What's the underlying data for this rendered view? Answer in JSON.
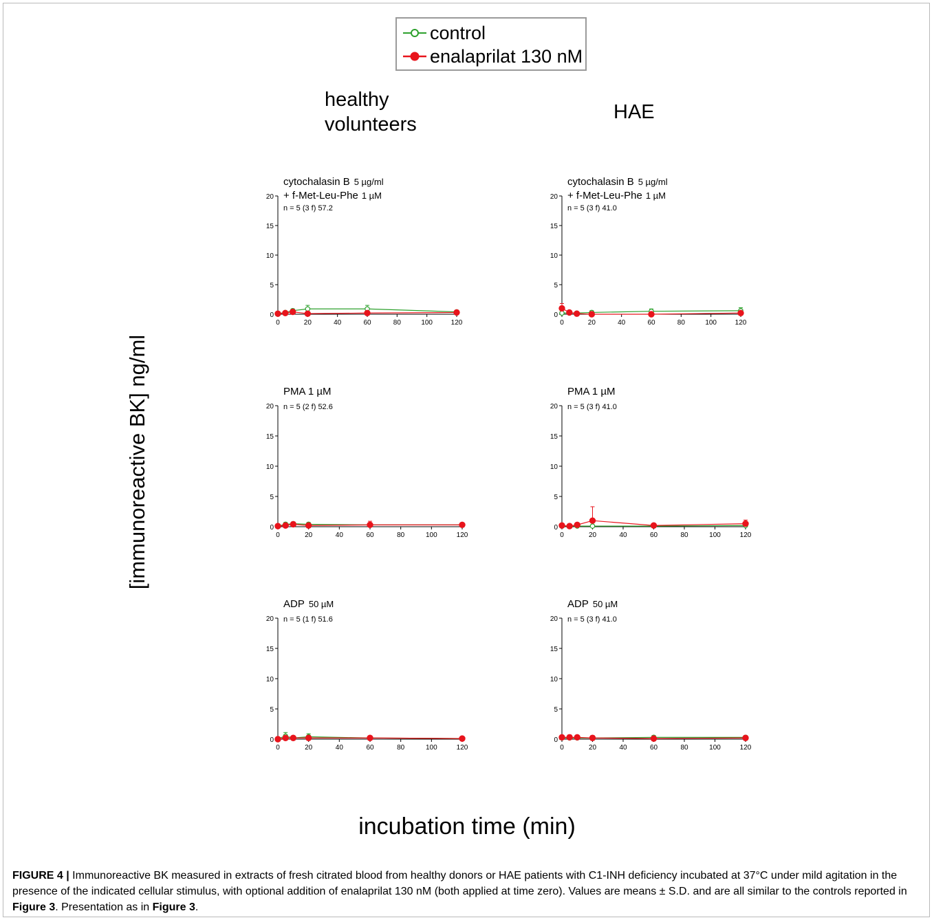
{
  "legend": {
    "control": "control",
    "enalaprilat": "enalaprilat 130 nM"
  },
  "column_titles": {
    "healthy_line1": "healthy",
    "healthy_line2": "volunteers",
    "hae": "HAE"
  },
  "y_axis_label": "[immunoreactive BK] ng/ml",
  "x_axis_label": "incubation time (min)",
  "caption": {
    "fig_label": "FIGURE 4 |",
    "text_1": " Immunoreactive BK measured in extracts of fresh citrated blood from healthy donors or HAE patients with C1-INH deficiency incubated at 37°C under mild agitation in the presence of the indicated cellular stimulus, with optional addition of enalaprilat 130 nM (both applied at time zero). Values are means ± S.D. and are all similar to the controls reported in ",
    "ref_1": "Figure 3",
    "text_2": ". Presentation as in ",
    "ref_2": "Figure 3",
    "text_3": "."
  },
  "colors": {
    "control": "#2ca02c",
    "enalaprilat": "#e8141c",
    "axis": "#000000"
  },
  "chart_data": [
    {
      "type": "line",
      "panel": "healthy-cytochalasin",
      "title_main": "cytochalasin B",
      "title_conc": "5 µg/ml",
      "title2_main": "+ f-Met-Leu-Phe",
      "title2_conc": "1 µM",
      "n_note": "n = 5 (3 f) 57.2",
      "x": [
        0,
        5,
        10,
        20,
        60,
        120
      ],
      "xticks": [
        0,
        20,
        40,
        60,
        80,
        100,
        120
      ],
      "yticks": [
        0,
        5,
        10,
        15,
        20
      ],
      "ylim": [
        0,
        20
      ],
      "xlim": [
        0,
        120
      ],
      "series": [
        {
          "name": "control",
          "values": [
            0.1,
            0.3,
            0.6,
            0.9,
            0.9,
            0.4
          ],
          "sd": [
            0.1,
            0.2,
            0.3,
            0.6,
            0.6,
            0.3
          ]
        },
        {
          "name": "enalaprilat 130 nM",
          "values": [
            0.1,
            0.2,
            0.4,
            0.1,
            0.2,
            0.3
          ],
          "sd": [
            0.1,
            0.2,
            0.3,
            0.2,
            0.2,
            0.2
          ]
        }
      ]
    },
    {
      "type": "line",
      "panel": "hae-cytochalasin",
      "title_main": "cytochalasin B",
      "title_conc": "5 µg/ml",
      "title2_main": "+ f-Met-Leu-Phe",
      "title2_conc": "1 µM",
      "n_note": "n = 5 (3 f) 41.0",
      "x": [
        0,
        5,
        10,
        20,
        60,
        120
      ],
      "xticks": [
        0,
        20,
        40,
        60,
        80,
        100,
        120
      ],
      "yticks": [
        0,
        5,
        10,
        15,
        20
      ],
      "ylim": [
        0,
        20
      ],
      "xlim": [
        0,
        120
      ],
      "series": [
        {
          "name": "control",
          "values": [
            0.2,
            0.2,
            0.2,
            0.3,
            0.5,
            0.6
          ],
          "sd": [
            0.2,
            0.2,
            0.2,
            0.3,
            0.4,
            0.5
          ]
        },
        {
          "name": "enalaprilat 130 nM",
          "values": [
            1.0,
            0.3,
            0.1,
            0.0,
            0.0,
            0.2
          ],
          "sd": [
            0.8,
            0.3,
            0.2,
            0.1,
            0.1,
            0.2
          ]
        }
      ]
    },
    {
      "type": "line",
      "panel": "healthy-pma",
      "title_main": "PMA  1 µM",
      "title_conc": "",
      "title2_main": "",
      "title2_conc": "",
      "n_note": "n = 5 (2 f) 52.6",
      "x": [
        0,
        5,
        10,
        20,
        60,
        120
      ],
      "xticks": [
        0,
        20,
        40,
        60,
        80,
        100,
        120
      ],
      "yticks": [
        0,
        5,
        10,
        15,
        20
      ],
      "ylim": [
        0,
        20
      ],
      "xlim": [
        0,
        120
      ],
      "series": [
        {
          "name": "control",
          "values": [
            0.1,
            0.4,
            0.5,
            0.4,
            0.3,
            0.3
          ],
          "sd": [
            0.1,
            0.3,
            0.3,
            0.3,
            0.2,
            0.2
          ]
        },
        {
          "name": "enalaprilat 130 nM",
          "values": [
            0.1,
            0.2,
            0.4,
            0.2,
            0.3,
            0.3
          ],
          "sd": [
            0.1,
            0.2,
            0.3,
            0.2,
            0.6,
            0.3
          ]
        }
      ]
    },
    {
      "type": "line",
      "panel": "hae-pma",
      "title_main": "PMA  1 µM",
      "title_conc": "",
      "title2_main": "",
      "title2_conc": "",
      "n_note": "n = 5 (3 f) 41.0",
      "x": [
        0,
        5,
        10,
        20,
        60,
        120
      ],
      "xticks": [
        0,
        20,
        40,
        60,
        80,
        100,
        120
      ],
      "yticks": [
        0,
        5,
        10,
        15,
        20
      ],
      "ylim": [
        0,
        20
      ],
      "xlim": [
        0,
        120
      ],
      "series": [
        {
          "name": "control",
          "values": [
            0.1,
            0.1,
            0.1,
            0.1,
            0.1,
            0.2
          ],
          "sd": [
            0.1,
            0.1,
            0.1,
            0.1,
            0.1,
            0.2
          ]
        },
        {
          "name": "enalaprilat 130 nM",
          "values": [
            0.2,
            0.1,
            0.3,
            1.0,
            0.2,
            0.5
          ],
          "sd": [
            0.2,
            0.2,
            0.3,
            2.3,
            0.3,
            0.6
          ]
        }
      ]
    },
    {
      "type": "line",
      "panel": "healthy-adp",
      "title_main": "ADP",
      "title_conc": "50 µM",
      "title2_main": "",
      "title2_conc": "",
      "n_note": "n = 5 (1 f) 51.6",
      "x": [
        0,
        5,
        10,
        20,
        60,
        120
      ],
      "xticks": [
        0,
        20,
        40,
        60,
        80,
        100,
        120
      ],
      "yticks": [
        0,
        5,
        10,
        15,
        20
      ],
      "ylim": [
        0,
        20
      ],
      "xlim": [
        0,
        120
      ],
      "series": [
        {
          "name": "control",
          "values": [
            0.1,
            0.5,
            0.2,
            0.4,
            0.2,
            0.1
          ],
          "sd": [
            0.1,
            0.6,
            0.2,
            0.5,
            0.2,
            0.1
          ]
        },
        {
          "name": "enalaprilat 130 nM",
          "values": [
            0.0,
            0.2,
            0.2,
            0.2,
            0.2,
            0.1
          ],
          "sd": [
            0.1,
            0.2,
            0.2,
            0.2,
            0.2,
            0.1
          ]
        }
      ]
    },
    {
      "type": "line",
      "panel": "hae-adp",
      "title_main": "ADP",
      "title_conc": "50 µM",
      "title2_main": "",
      "title2_conc": "",
      "n_note": "n = 5 (3 f) 41.0",
      "x": [
        0,
        5,
        10,
        20,
        60,
        120
      ],
      "xticks": [
        0,
        20,
        40,
        60,
        80,
        100,
        120
      ],
      "yticks": [
        0,
        5,
        10,
        15,
        20
      ],
      "ylim": [
        0,
        20
      ],
      "xlim": [
        0,
        120
      ],
      "series": [
        {
          "name": "control",
          "values": [
            0.2,
            0.2,
            0.2,
            0.2,
            0.3,
            0.3
          ],
          "sd": [
            0.2,
            0.2,
            0.2,
            0.2,
            0.3,
            0.3
          ]
        },
        {
          "name": "enalaprilat 130 nM",
          "values": [
            0.3,
            0.3,
            0.3,
            0.2,
            0.1,
            0.2
          ],
          "sd": [
            0.3,
            0.4,
            0.3,
            0.4,
            0.2,
            0.3
          ]
        }
      ]
    }
  ]
}
